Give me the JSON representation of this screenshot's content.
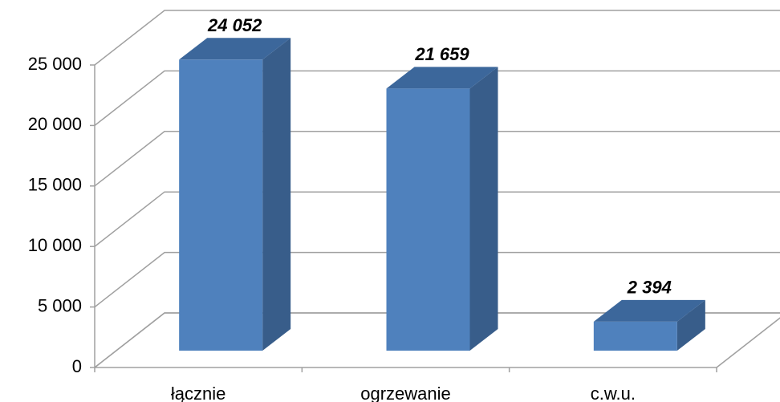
{
  "chart_data": {
    "type": "bar3d",
    "categories": [
      "łącznie",
      "ogrzewanie",
      "c.w.u."
    ],
    "values": [
      24052,
      21659,
      2394
    ],
    "value_labels": [
      "24 052",
      "21 659",
      "2 394"
    ],
    "color": "#4f81bd",
    "ylim": [
      0,
      25000
    ],
    "yticks": [
      0,
      {
        "value": 5000,
        "label": "5 000"
      },
      {
        "value": 10000,
        "label": "10 000"
      },
      {
        "value": 15000,
        "label": "15 000"
      },
      {
        "value": 20000,
        "label": "20 000"
      },
      {
        "value": 25000,
        "label": "25 000"
      }
    ],
    "grid": true
  }
}
